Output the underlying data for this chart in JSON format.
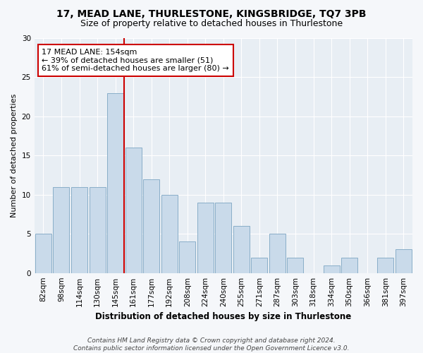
{
  "title_line1": "17, MEAD LANE, THURLESTONE, KINGSBRIDGE, TQ7 3PB",
  "title_line2": "Size of property relative to detached houses in Thurlestone",
  "xlabel": "Distribution of detached houses by size in Thurlestone",
  "ylabel": "Number of detached properties",
  "categories": [
    "82sqm",
    "98sqm",
    "114sqm",
    "130sqm",
    "145sqm",
    "161sqm",
    "177sqm",
    "192sqm",
    "208sqm",
    "224sqm",
    "240sqm",
    "255sqm",
    "271sqm",
    "287sqm",
    "303sqm",
    "318sqm",
    "334sqm",
    "350sqm",
    "366sqm",
    "381sqm",
    "397sqm"
  ],
  "values": [
    5,
    11,
    11,
    11,
    23,
    16,
    12,
    10,
    4,
    9,
    9,
    6,
    2,
    5,
    2,
    0,
    1,
    2,
    0,
    2,
    3
  ],
  "bar_color": "#c9daea",
  "bar_edge_color": "#89aec8",
  "reference_line_color": "#cc0000",
  "annotation_text": "17 MEAD LANE: 154sqm\n← 39% of detached houses are smaller (51)\n61% of semi-detached houses are larger (80) →",
  "annotation_box_facecolor": "#ffffff",
  "annotation_box_edgecolor": "#cc0000",
  "ylim": [
    0,
    30
  ],
  "yticks": [
    0,
    5,
    10,
    15,
    20,
    25,
    30
  ],
  "plot_bg_color": "#e8eef4",
  "fig_bg_color": "#f5f7fa",
  "grid_color": "#ffffff",
  "footer_line1": "Contains HM Land Registry data © Crown copyright and database right 2024.",
  "footer_line2": "Contains public sector information licensed under the Open Government Licence v3.0.",
  "title_fontsize": 10,
  "subtitle_fontsize": 9,
  "xlabel_fontsize": 8.5,
  "ylabel_fontsize": 8,
  "tick_fontsize": 7.5,
  "annotation_fontsize": 8,
  "footer_fontsize": 6.5
}
